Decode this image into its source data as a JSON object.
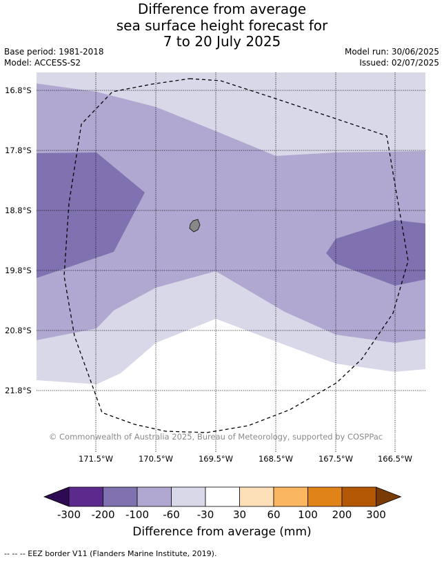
{
  "title": {
    "line1": "Difference from average",
    "line2": "sea surface height forecast for",
    "line3": "7 to 20 July 2025"
  },
  "meta": {
    "base_period": "Base period: 1981-2018",
    "model": "Model: ACCESS-S2",
    "model_run": "Model run: 30/06/2025",
    "issued": "Issued: 02/07/2025"
  },
  "map": {
    "lat_labels": [
      "16.8°S",
      "17.8°S",
      "18.8°S",
      "19.8°S",
      "20.8°S",
      "21.8°S"
    ],
    "lon_labels": [
      "171.5°W",
      "170.5°W",
      "169.5°W",
      "168.5°W",
      "167.5°W",
      "166.5°W"
    ],
    "copyright": "© Commonwealth of Australia 2025, Bureau of Meteorology, supported by COSPPac",
    "colors": {
      "band_0_30": "#ffffff",
      "band_neg30_neg60": "#d8d8e8",
      "band_neg60_neg100": "#b0a8d0",
      "band_neg100_neg200": "#8072b0",
      "island": "#888888"
    }
  },
  "colorbar": {
    "title": "Difference from average (mm)",
    "tick_labels": [
      "-300",
      "-200",
      "-100",
      "-60",
      "-30",
      "30",
      "60",
      "100",
      "200",
      "300"
    ],
    "colors": [
      "#2e0a52",
      "#5b2a8c",
      "#8072b0",
      "#b0a8d0",
      "#d8d8e8",
      "#ffffff",
      "#fde0b8",
      "#fbb662",
      "#e0841a",
      "#b45806",
      "#7a3a06"
    ]
  },
  "footnote": "--  --  -- EEZ border V11 (Flanders Marine Institute, 2019)."
}
